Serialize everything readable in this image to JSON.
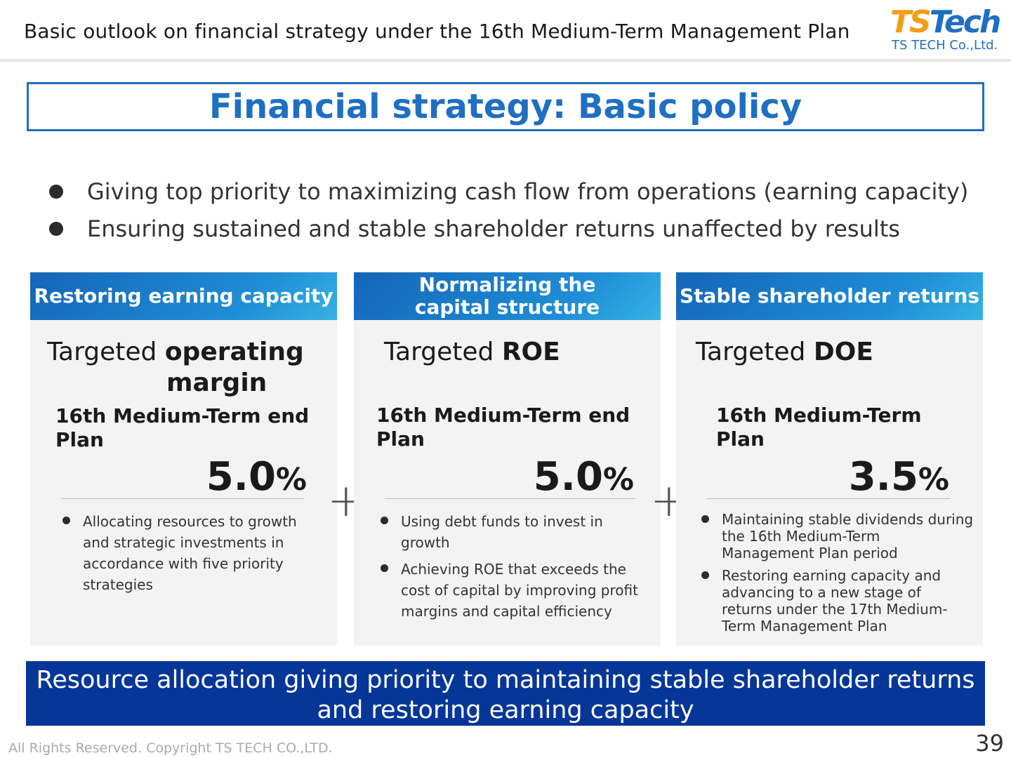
{
  "header": {
    "title": "Basic outlook on financial strategy under the 16th Medium-Term Management Plan",
    "logo_mark_a": "TS",
    "logo_mark_b": "Tech",
    "logo_company": "TS TECH Co.,Ltd."
  },
  "policy": {
    "title": "Financial strategy: Basic policy",
    "bullets": [
      "Giving top priority to maximizing cash flow from operations (earning capacity)",
      "Ensuring sustained and stable shareholder returns unaffected by results"
    ]
  },
  "columns": [
    {
      "header": "Restoring earning capacity",
      "target_prefix": "Targeted ",
      "target_bold": "operating",
      "target_bold_2": "margin",
      "plan_line_1": "16th Medium-Term end",
      "plan_line_2": "Plan",
      "value": "5.0",
      "unit": "%",
      "notes": [
        "Allocating resources to growth and strategic investments in accordance with five priority strategies"
      ]
    },
    {
      "header_line_1": "Normalizing the",
      "header_line_2": "capital structure",
      "target_prefix": "Targeted ",
      "target_bold": "ROE",
      "plan_line_1": "16th Medium-Term end",
      "plan_line_2": "Plan",
      "value": "5.0",
      "unit": "%",
      "notes": [
        "Using debt funds to invest in growth",
        "Achieving ROE that exceeds the cost of capital by improving profit margins and capital efficiency"
      ]
    },
    {
      "header": "Stable shareholder returns",
      "target_prefix": "Targeted ",
      "target_bold": "DOE",
      "plan_line_1": "16th Medium-Term",
      "plan_line_2": "Plan",
      "value": "3.5",
      "unit": "%",
      "notes": [
        "Maintaining stable dividends during the 16th Medium-Term Management Plan period",
        "Restoring earning capacity and advancing to a new stage of returns under the 17th Medium-Term Management Plan"
      ]
    }
  ],
  "operators": [
    "+",
    "+"
  ],
  "banner": {
    "line_1": "Resource allocation giving priority to maintaining stable shareholder returns",
    "line_2": "and restoring earning capacity"
  },
  "footer": {
    "copyright": "All Rights Reserved. Copyright TS TECH CO.,LTD.",
    "page_number": "39"
  }
}
